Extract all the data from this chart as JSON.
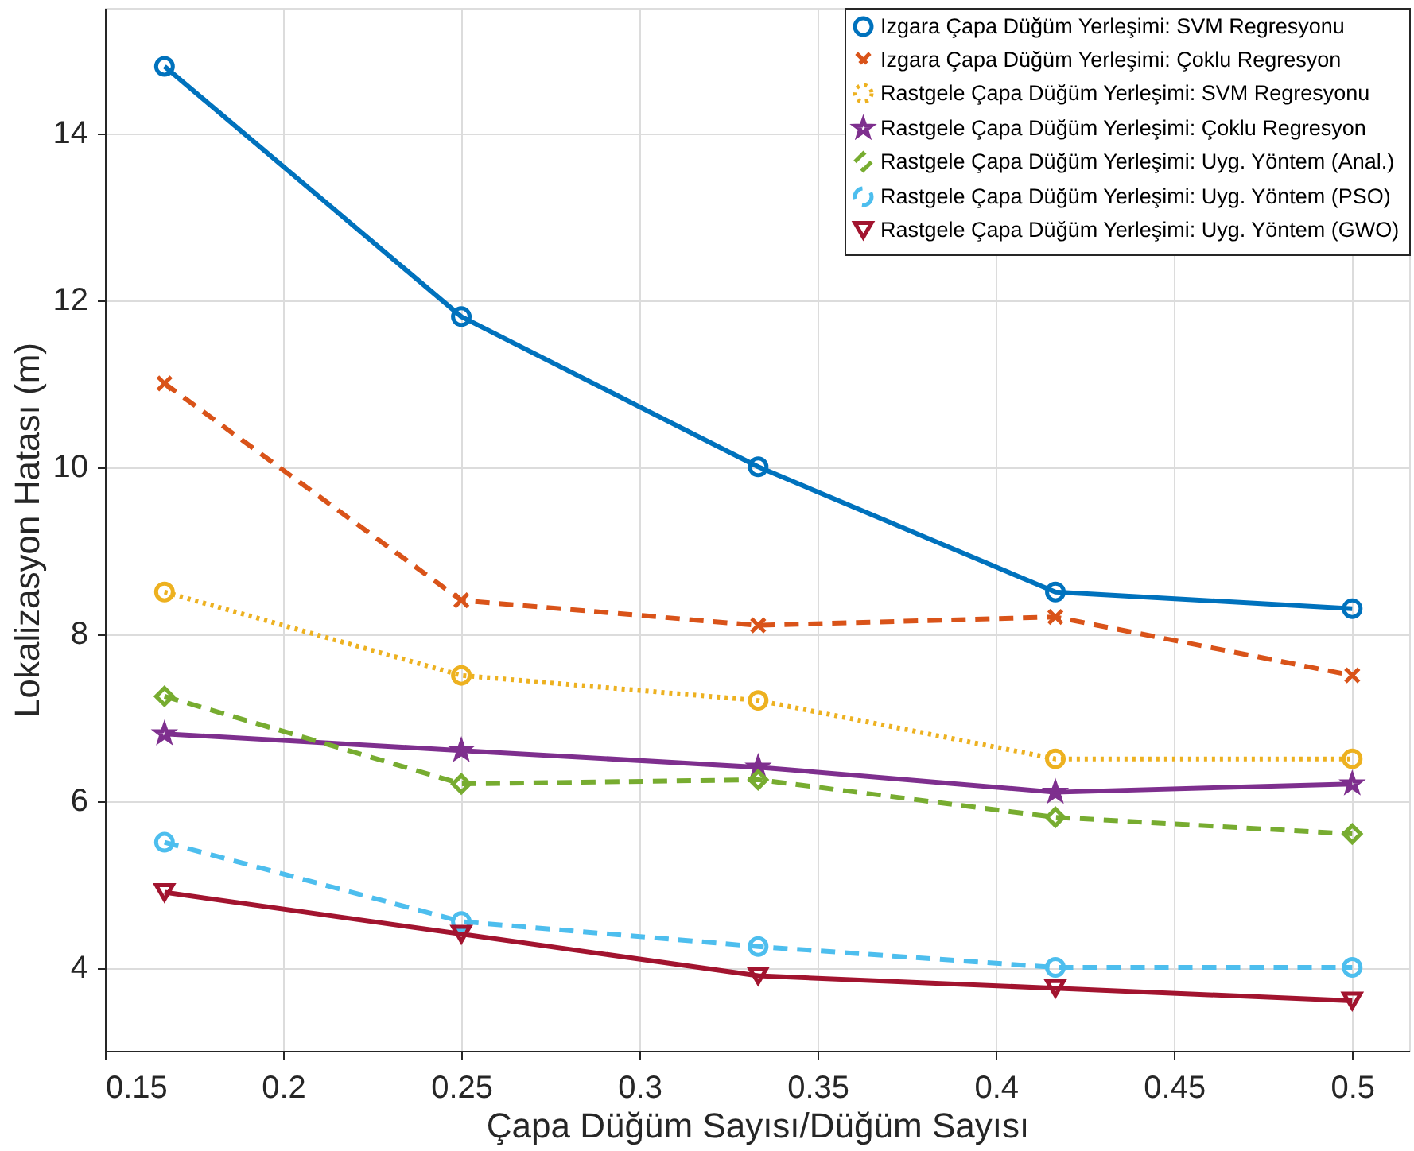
{
  "chart_data": {
    "type": "line",
    "xlabel": "Çapa Düğüm Sayısı/Düğüm Sayısı",
    "ylabel": "Lokalizasyon Hatası (m)",
    "x": [
      0.1667,
      0.25,
      0.3333,
      0.4167,
      0.5
    ],
    "xlim": [
      0.15,
      0.516
    ],
    "xticks": [
      0.15,
      0.2,
      0.25,
      0.3,
      0.35,
      0.4,
      0.45,
      0.5
    ],
    "ylim": [
      3,
      15.5
    ],
    "yticks": [
      4,
      6,
      8,
      10,
      12,
      14
    ],
    "grid": true,
    "legend": "top right",
    "series": [
      {
        "name": "Izgara Çapa Düğüm Yerleşimi: SVM Regresyonu",
        "color": "#0072bd",
        "marker": "circle",
        "line_style": "solid",
        "values": [
          14.8,
          11.8,
          10.0,
          8.5,
          8.3
        ]
      },
      {
        "name": "Izgara Çapa Düğüm Yerleşimi: Çoklu Regresyon",
        "color": "#d95319",
        "marker": "cross",
        "line_style": "dashed",
        "values": [
          11.0,
          8.4,
          8.1,
          8.2,
          7.5
        ]
      },
      {
        "name": "Rastgele Çapa Düğüm Yerleşimi: SVM Regresyonu",
        "color": "#edb120",
        "marker": "circle",
        "line_style": "dotted",
        "values": [
          8.5,
          7.5,
          7.2,
          6.5,
          6.5
        ]
      },
      {
        "name": "Rastgele Çapa Düğüm Yerleşimi: Çoklu Regresyon",
        "color": "#7e2f8e",
        "marker": "star",
        "line_style": "solid",
        "values": [
          6.8,
          6.6,
          6.4,
          6.1,
          6.2
        ]
      },
      {
        "name": "Rastgele Çapa Düğüm Yerleşimi: Uyg. Yöntem (Anal.)",
        "color": "#77ac30",
        "marker": "diamond",
        "line_style": "dashed",
        "values": [
          7.25,
          6.2,
          6.25,
          5.8,
          5.6
        ]
      },
      {
        "name": "Rastgele Çapa Düğüm Yerleşimi: Uyg. Yöntem (PSO)",
        "color": "#4dbeee",
        "marker": "circle",
        "line_style": "dashed",
        "values": [
          5.5,
          4.55,
          4.25,
          4.0,
          4.0
        ]
      },
      {
        "name": "Rastgele Çapa Düğüm Yerleşimi: Uyg. Yöntem (GWO)",
        "color": "#a2142f",
        "marker": "triangle",
        "line_style": "solid",
        "values": [
          4.9,
          4.4,
          3.9,
          3.75,
          3.6
        ]
      }
    ]
  }
}
